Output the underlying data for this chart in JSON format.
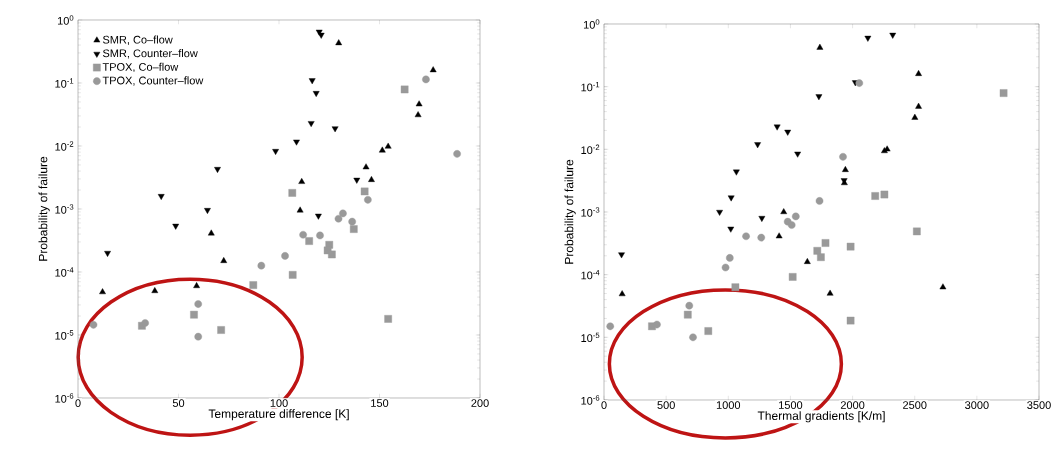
{
  "chart_data": [
    {
      "type": "scatter",
      "xlabel": "Temperature difference [K]",
      "ylabel": "Probability of failure",
      "log": "y",
      "xlim": [
        0,
        200
      ],
      "ylim": [
        1e-06,
        1
      ],
      "xticks": [
        0,
        50,
        100,
        150,
        200
      ],
      "yticks": [
        {
          "value": 1e-06,
          "label": "10$^{-6}$"
        },
        {
          "value": 1e-05,
          "label": "10$^{-5}$"
        },
        {
          "value": 0.0001,
          "label": "10$^{-4}$"
        },
        {
          "value": 0.001,
          "label": "10$^{-3}$"
        },
        {
          "value": 0.01,
          "label": "10$^{-2}$"
        },
        {
          "value": 0.1,
          "label": "10$^{-1}$"
        },
        {
          "value": 1,
          "label": "10$^{0}$"
        }
      ],
      "legend": "top left",
      "grid": false,
      "series": [
        {
          "name": "SMR, Co–flow",
          "color": "#000000",
          "marker": "triangle",
          "x": [
            12.2,
            38.2,
            59,
            66.3,
            72.5,
            129.7,
            176.7,
            169.7,
            169.2,
            151.4,
            154.3,
            143.3,
            146,
            111.3,
            110.5
          ],
          "values": [
            4.8e-05,
            5e-05,
            6e-05,
            0.00041,
            0.00015,
            0.43,
            0.16,
            0.046,
            0.031,
            0.0085,
            0.0098,
            0.0046,
            0.0029,
            0.0027,
            0.00095
          ]
        },
        {
          "name": "SMR, Counter–flow",
          "color": "#000000",
          "marker": "triangle-down",
          "x": [
            120,
            121,
            116.5,
            118.5,
            116,
            127.9,
            108.7,
            98.3,
            69.4,
            41.4,
            64.4,
            119.6,
            138.7,
            48.6,
            14.7
          ],
          "values": [
            0.65,
            0.58,
            0.11,
            0.069,
            0.023,
            0.019,
            0.0117,
            0.0083,
            0.0043,
            0.0016,
            0.00096,
            0.00078,
            0.0029,
            0.00054,
            0.0002
          ]
        },
        {
          "name": "TPOX, Co–flow",
          "color": "#999999",
          "marker": "square",
          "x": [
            162.5,
            106.6,
            142.6,
            137.2,
            115,
            125,
            124.2,
            126.3,
            106.8,
            87.2,
            57.7,
            71.2,
            31.8,
            154.3
          ],
          "values": [
            0.079,
            0.0018,
            0.0019,
            0.00048,
            0.00031,
            0.00027,
            0.00022,
            0.00019,
            9e-05,
            6.2e-05,
            2.1e-05,
            1.2e-05,
            1.4e-05,
            1.8e-05
          ]
        },
        {
          "name": "TPOX, Counter–flow",
          "color": "#999999",
          "marker": "circle",
          "x": [
            173.1,
            188.6,
            144.2,
            131.8,
            129.6,
            136.4,
            112,
            120.4,
            103,
            91.2,
            59.8,
            59.8,
            33.4,
            7.7
          ],
          "values": [
            0.114,
            0.0075,
            0.0014,
            0.00085,
            0.0007,
            0.00063,
            0.00039,
            0.00038,
            0.00018,
            0.000126,
            3.1e-05,
            9.4e-06,
            1.55e-05,
            1.45e-05
          ]
        }
      ]
    },
    {
      "type": "scatter",
      "xlabel": "Thermal gradients [K/m]",
      "ylabel": "Probability of failure",
      "log": "y",
      "xlim": [
        0,
        3500
      ],
      "ylim": [
        1e-06,
        1
      ],
      "xticks": [
        0,
        500,
        1000,
        1500,
        2000,
        2500,
        3000,
        3500
      ],
      "yticks": [
        {
          "value": 1e-06,
          "label": "10$^{-6}$"
        },
        {
          "value": 1e-05,
          "label": "10$^{-5}$"
        },
        {
          "value": 0.0001,
          "label": "10$^{-4}$"
        },
        {
          "value": 0.001,
          "label": "10$^{-3}$"
        },
        {
          "value": 0.01,
          "label": "10$^{-2}$"
        },
        {
          "value": 0.1,
          "label": "10$^{-1}$"
        },
        {
          "value": 1,
          "label": "10$^{0}$"
        }
      ],
      "grid": false,
      "series": [
        {
          "color": "#000000",
          "marker": "triangle",
          "x": [
            1737,
            2531,
            2531,
            2501,
            2256,
            2278,
            1942,
            1934,
            1446,
            1409,
            1636,
            146,
            1819,
            2727
          ],
          "values": [
            0.42,
            0.16,
            0.048,
            0.032,
            0.0094,
            0.01,
            0.0047,
            0.0029,
            0.001,
            0.00041,
            0.00016,
            4.9e-05,
            5e-05,
            6.3e-05
          ]
        },
        {
          "color": "#000000",
          "marker": "triangle-down",
          "x": [
            2123,
            2323,
            2022,
            1729,
            1393,
            1478,
            1236,
            1558,
            1065,
            1023,
            930,
            1270,
            1020,
            141,
            1932
          ],
          "values": [
            0.6,
            0.67,
            0.117,
            0.07,
            0.023,
            0.019,
            0.012,
            0.0085,
            0.0044,
            0.0017,
            0.001,
            0.0008,
            0.00054,
            0.00021,
            0.0032
          ]
        },
        {
          "color": "#999999",
          "marker": "square",
          "x": [
            3215,
            2182,
            2256,
            2517,
            1782,
            1984,
            1716,
            1745,
            1518,
            1057,
            674,
            839,
            386,
            1984
          ],
          "values": [
            0.079,
            0.0018,
            0.0019,
            0.00049,
            0.00032,
            0.00028,
            0.00024,
            0.00019,
            9.2e-05,
            6.3e-05,
            2.3e-05,
            1.26e-05,
            1.5e-05,
            1.85e-05
          ]
        },
        {
          "color": "#999999",
          "marker": "circle",
          "x": [
            2054,
            1923,
            1734,
            1543,
            1478,
            1510,
            1143,
            1265,
            1012,
            978,
            686,
            716,
            426,
            50
          ],
          "values": [
            0.114,
            0.0076,
            0.0015,
            0.00085,
            0.0007,
            0.00062,
            0.00041,
            0.00039,
            0.000185,
            0.00013,
            3.2e-05,
            1e-05,
            1.6e-05,
            1.5e-05
          ]
        }
      ]
    }
  ]
}
